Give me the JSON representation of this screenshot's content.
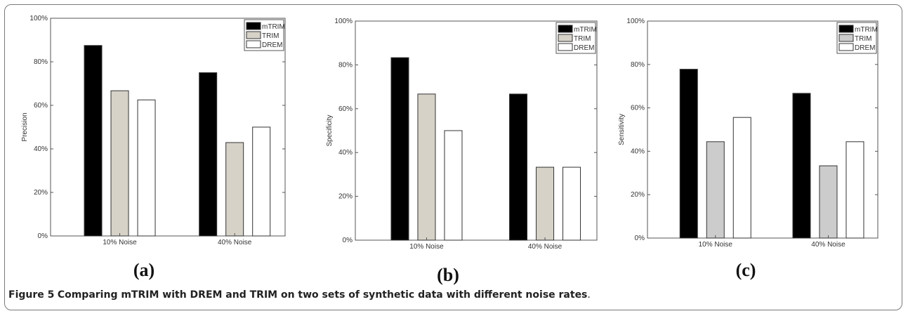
{
  "caption": {
    "figure_label": "Figure 5",
    "text": "Comparing mTRIM with DREM and TRIM on two sets of synthetic data with different noise rates",
    "end": "."
  },
  "colors": {
    "mTRIM": "#000000",
    "TRIM_a": "#d6d2c8",
    "TRIM_b": "#d6d2c8",
    "TRIM_c": "#cccccc",
    "DREM": "#ffffff"
  },
  "chart_data": [
    {
      "type": "bar",
      "panel_label": "(a)",
      "ylabel": "Precision",
      "categories": [
        "10% Noise",
        "40% Noise"
      ],
      "ylim": [
        0,
        100
      ],
      "yticks": [
        "0%",
        "20%",
        "40%",
        "60%",
        "80%",
        "100%"
      ],
      "legend_position": "top-right",
      "series": [
        {
          "name": "mTRIM",
          "values": [
            87.5,
            75
          ]
        },
        {
          "name": "TRIM",
          "values": [
            66.7,
            42.9
          ]
        },
        {
          "name": "DREM",
          "values": [
            62.5,
            50
          ]
        }
      ]
    },
    {
      "type": "bar",
      "panel_label": "(b)",
      "ylabel": "Specificity",
      "categories": [
        "10% Noise",
        "40% Noise"
      ],
      "ylim": [
        0,
        100
      ],
      "yticks": [
        "0%",
        "20%",
        "40%",
        "60%",
        "80%",
        "100%"
      ],
      "legend_position": "top-right",
      "series": [
        {
          "name": "mTRIM",
          "values": [
            83.3,
            66.7
          ]
        },
        {
          "name": "TRIM",
          "values": [
            66.7,
            33.3
          ]
        },
        {
          "name": "DREM",
          "values": [
            50,
            33.3
          ]
        }
      ]
    },
    {
      "type": "bar",
      "panel_label": "(c)",
      "ylabel": "Sensitivity",
      "categories": [
        "10% Noise",
        "40% Noise"
      ],
      "ylim": [
        0,
        100
      ],
      "yticks": [
        "0%",
        "20%",
        "40%",
        "60%",
        "80%",
        "100%"
      ],
      "legend_position": "top-right",
      "series": [
        {
          "name": "mTRIM",
          "values": [
            77.8,
            66.7
          ]
        },
        {
          "name": "TRIM",
          "values": [
            44.4,
            33.3
          ]
        },
        {
          "name": "DREM",
          "values": [
            55.6,
            44.4
          ]
        }
      ]
    }
  ]
}
